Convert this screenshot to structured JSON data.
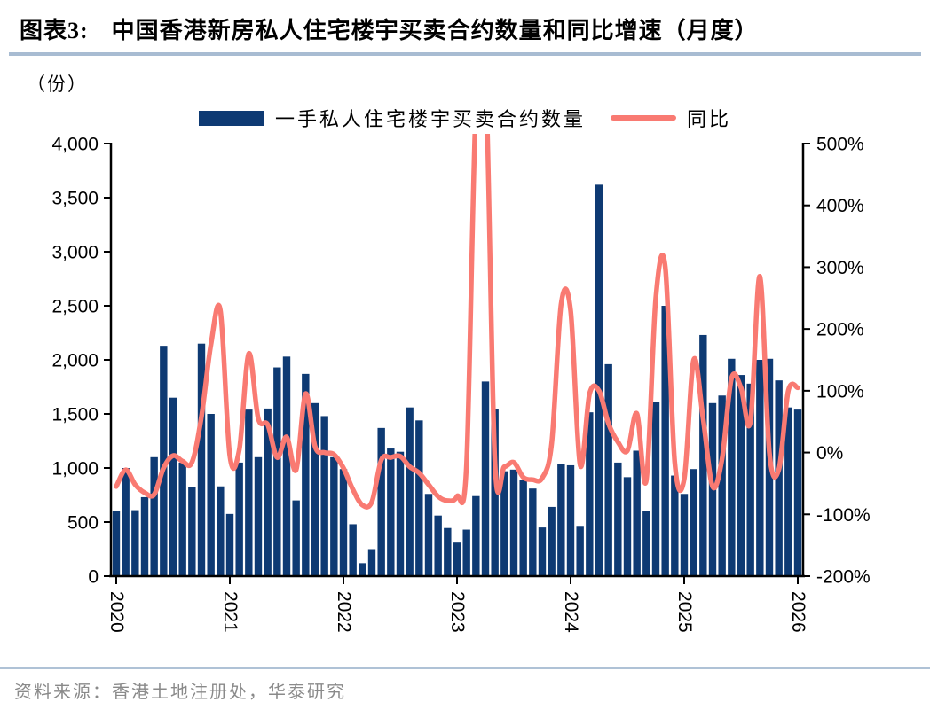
{
  "header": {
    "tag": "图表3:",
    "title": "中国香港新房私人住宅楼宇买卖合约数量和同比增速（月度）"
  },
  "unit_label": "（份）",
  "legend": {
    "bar_label": "一手私人住宅楼宇买卖合约数量",
    "line_label": "同比"
  },
  "source": "资料来源：香港土地注册处，华泰研究",
  "colors": {
    "bar": "#0E3A73",
    "line": "#F97A72",
    "axis": "#000000",
    "head_rule": "#A8BCD2",
    "source_rule": "#AFC2D6",
    "source_text": "#8A8A8A"
  },
  "chart_data": {
    "type": "bar",
    "subtype": "bar+line dual axis, monthly",
    "title": "中国香港新房私人住宅楼宇买卖合约数量和同比增速（月度）",
    "xlabel": "",
    "ylabel_left": "（份）",
    "ylabel_right": "同比 %",
    "grid": false,
    "legend_position": "top-center",
    "x_tick_labels": [
      "2020",
      "2021",
      "2022",
      "2023",
      "2024",
      "2025",
      "2026"
    ],
    "left_axis": {
      "min": 0,
      "max": 4000,
      "step": 500,
      "tick_labels": [
        "4,000",
        "3,500",
        "3,000",
        "2,500",
        "2,000",
        "1,500",
        "1,000",
        "500",
        "0"
      ]
    },
    "right_axis": {
      "min": -200,
      "max": 500,
      "step": 100,
      "tick_labels": [
        "500%",
        "400%",
        "300%",
        "200%",
        "100%",
        "0%",
        "-100%",
        "-200%"
      ],
      "clipped_above_max_months": [
        "2023-03",
        "2023-04"
      ]
    },
    "months": [
      "2020-01",
      "2020-02",
      "2020-03",
      "2020-04",
      "2020-05",
      "2020-06",
      "2020-07",
      "2020-08",
      "2020-09",
      "2020-10",
      "2020-11",
      "2020-12",
      "2021-01",
      "2021-02",
      "2021-03",
      "2021-04",
      "2021-05",
      "2021-06",
      "2021-07",
      "2021-08",
      "2021-09",
      "2021-10",
      "2021-11",
      "2021-12",
      "2022-01",
      "2022-02",
      "2022-03",
      "2022-04",
      "2022-05",
      "2022-06",
      "2022-07",
      "2022-08",
      "2022-09",
      "2022-10",
      "2022-11",
      "2022-12",
      "2023-01",
      "2023-02",
      "2023-03",
      "2023-04",
      "2023-05",
      "2023-06",
      "2023-07",
      "2023-08",
      "2023-09",
      "2023-10",
      "2023-11",
      "2023-12",
      "2024-01",
      "2024-02",
      "2024-03",
      "2024-04",
      "2024-05",
      "2024-06",
      "2024-07",
      "2024-08",
      "2024-09",
      "2024-10",
      "2024-11",
      "2024-12",
      "2025-01",
      "2025-02",
      "2025-03",
      "2025-04",
      "2025-05",
      "2025-06",
      "2025-07",
      "2025-08",
      "2025-09",
      "2025-10",
      "2025-11",
      "2025-12",
      "2026-01"
    ],
    "series": [
      {
        "name": "一手私人住宅楼宇买卖合约数量",
        "type": "bar",
        "axis": "left",
        "unit": "份",
        "values": [
          600,
          1000,
          610,
          730,
          1100,
          2130,
          1650,
          1050,
          820,
          2150,
          1500,
          830,
          575,
          1050,
          1540,
          1100,
          1550,
          1930,
          2030,
          700,
          1870,
          1600,
          1480,
          1100,
          990,
          480,
          120,
          250,
          1370,
          1180,
          1150,
          1560,
          1440,
          760,
          560,
          445,
          310,
          430,
          740,
          1800,
          1545,
          970,
          985,
          890,
          810,
          450,
          640,
          1040,
          1025,
          465,
          1515,
          3620,
          1960,
          1050,
          915,
          1160,
          600,
          1610,
          2500,
          930,
          760,
          990,
          2230,
          1600,
          1670,
          2010,
          1860,
          1780,
          2000,
          2010,
          1810,
          1560,
          1540
        ]
      },
      {
        "name": "同比",
        "type": "line",
        "axis": "right",
        "unit": "%",
        "values": [
          -55,
          -28,
          -52,
          -65,
          -68,
          -25,
          -5,
          -14,
          -16,
          58,
          175,
          230,
          -5,
          5,
          160,
          55,
          45,
          -8,
          25,
          -28,
          95,
          10,
          0,
          -3,
          -25,
          -60,
          -85,
          -80,
          -12,
          -8,
          -6,
          -23,
          -33,
          -52,
          -71,
          -78,
          -71,
          -20,
          560,
          620,
          -15,
          -23,
          -16,
          -40,
          -44,
          -41,
          15,
          240,
          230,
          -20,
          95,
          100,
          47,
          17,
          3,
          63,
          -45,
          250,
          300,
          -15,
          -43,
          150,
          55,
          -55,
          -10,
          120,
          105,
          50,
          285,
          0,
          -27,
          100,
          105
        ]
      }
    ]
  }
}
